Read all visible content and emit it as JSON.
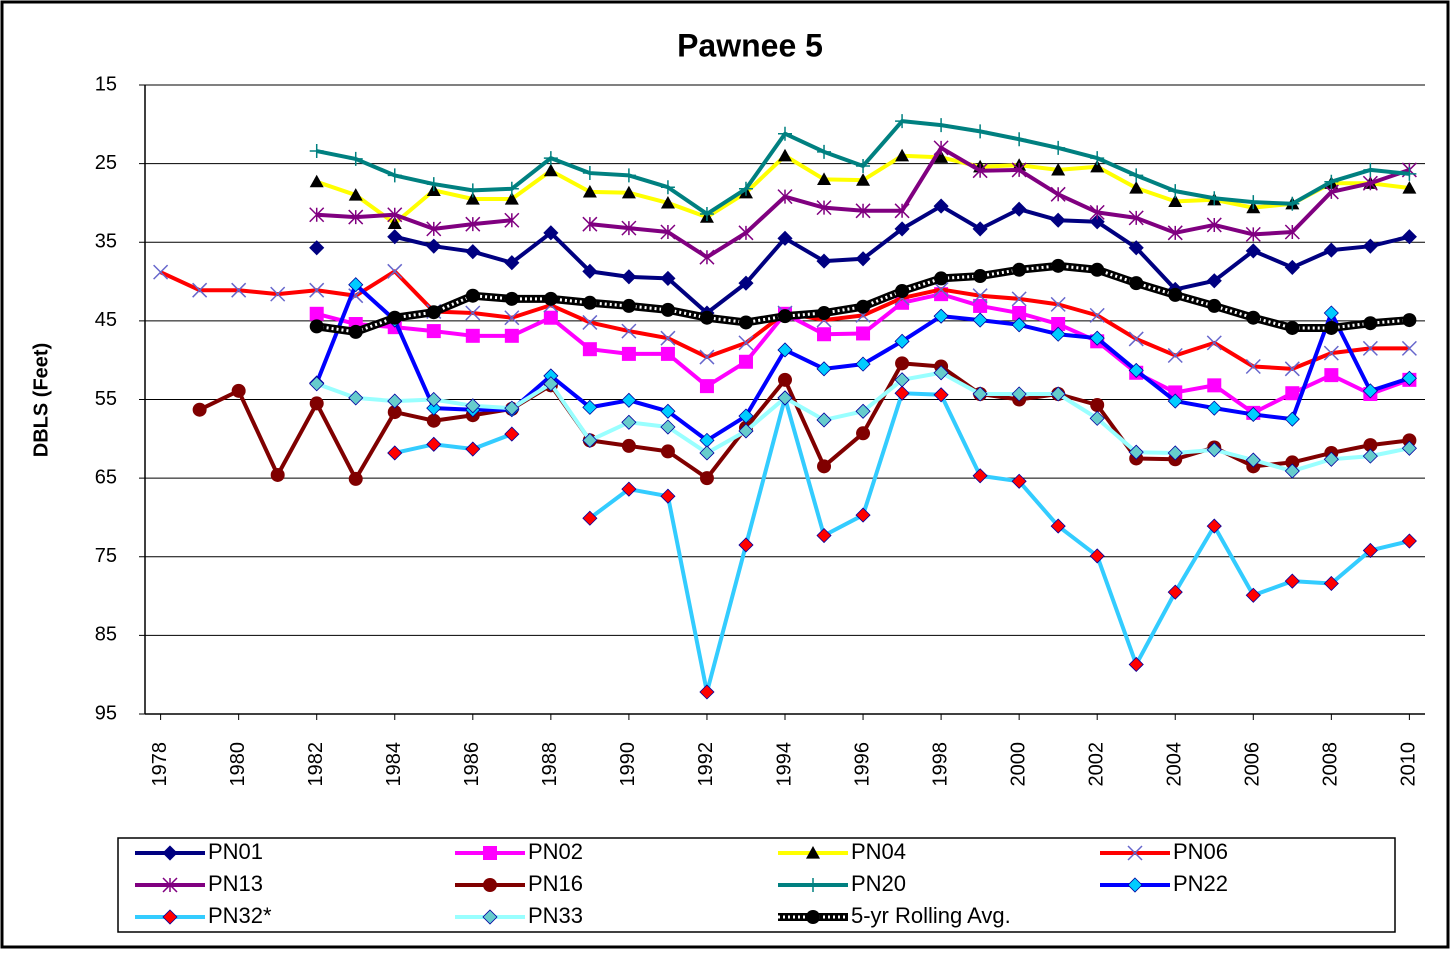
{
  "chart_data": {
    "type": "line",
    "title": "Pawnee 5",
    "y_label": "DBLS (Feet)",
    "x": [
      1978,
      1979,
      1980,
      1981,
      1982,
      1983,
      1984,
      1985,
      1986,
      1987,
      1988,
      1989,
      1990,
      1991,
      1992,
      1993,
      1994,
      1995,
      1996,
      1997,
      1998,
      1999,
      2000,
      2001,
      2002,
      2003,
      2004,
      2005,
      2006,
      2007,
      2008,
      2009,
      2010
    ],
    "xlim": [
      1977.6,
      2010.4
    ],
    "xticks": [
      1978,
      1980,
      1982,
      1984,
      1986,
      1988,
      1990,
      1992,
      1994,
      1996,
      1998,
      2000,
      2002,
      2004,
      2006,
      2008,
      2010
    ],
    "ylim": [
      15,
      95
    ],
    "y_inverted": true,
    "yticks": [
      15,
      25,
      35,
      45,
      55,
      65,
      75,
      85,
      95
    ],
    "grid": true,
    "legend": "bottom",
    "series": [
      {
        "name": "PN01",
        "color": "#000080",
        "marker": "diamond",
        "marker_color": "#000080",
        "values": [
          null,
          null,
          null,
          null,
          35.7,
          null,
          34.3,
          35.5,
          36.2,
          37.6,
          33.8,
          38.7,
          39.4,
          39.6,
          44,
          40.2,
          34.5,
          37.4,
          37.1,
          33.3,
          30.4,
          33.3,
          30.8,
          32.2,
          32.4,
          35.7,
          41,
          39.9,
          36.1,
          38.2,
          36,
          35.5,
          34.3
        ]
      },
      {
        "name": "PN02",
        "color": "#ff00ff",
        "marker": "square",
        "marker_color": "#ff00ff",
        "values": [
          null,
          null,
          null,
          null,
          44.1,
          45.4,
          45.8,
          46.3,
          46.9,
          46.9,
          44.6,
          48.6,
          49.2,
          49.2,
          53.3,
          50.2,
          44.1,
          46.7,
          46.6,
          42.7,
          41.6,
          43.1,
          44,
          45.4,
          47.6,
          51.6,
          54.1,
          53.2,
          56.7,
          54.2,
          51.9,
          54.3,
          52.5
        ]
      },
      {
        "name": "PN04",
        "color": "#ffff00",
        "marker": "triangle",
        "marker_color": "#000000",
        "values": [
          null,
          null,
          null,
          null,
          27.3,
          29,
          32.6,
          28.4,
          29.5,
          29.5,
          25.9,
          28.6,
          28.7,
          30,
          31.8,
          28.7,
          24,
          27,
          27.1,
          24,
          24.2,
          25.4,
          25.2,
          25.8,
          25.4,
          28.1,
          29.8,
          29.6,
          30.6,
          30.1,
          27.5,
          27.5,
          28.1
        ]
      },
      {
        "name": "PN06",
        "color": "#ff0000",
        "marker": "x",
        "marker_color": "#6666cc",
        "values": [
          38.8,
          41.1,
          41.1,
          41.6,
          41.1,
          41.8,
          38.7,
          43.8,
          44,
          44.6,
          43,
          45.2,
          46.3,
          47.2,
          49.6,
          47.8,
          44,
          44.9,
          44.3,
          42.1,
          41,
          41.8,
          42.2,
          42.9,
          44.3,
          47.3,
          49.4,
          47.8,
          50.8,
          51.1,
          49.1,
          48.5,
          48.5
        ]
      },
      {
        "name": "PN13",
        "color": "#800080",
        "marker": "star",
        "marker_color": "#800080",
        "values": [
          null,
          null,
          null,
          null,
          31.5,
          31.8,
          31.5,
          33.3,
          32.7,
          32.2,
          null,
          32.7,
          33.2,
          33.7,
          36.9,
          33.8,
          29.2,
          30.6,
          31,
          31,
          23,
          25.9,
          25.8,
          28.9,
          31.2,
          31.9,
          33.8,
          32.8,
          34,
          33.7,
          28.6,
          27.5,
          25.8
        ]
      },
      {
        "name": "PN16",
        "color": "#800000",
        "marker": "circle",
        "marker_color": "#800000",
        "values": [
          null,
          56.3,
          53.9,
          64.6,
          55.5,
          65.1,
          56.6,
          57.7,
          57,
          56.2,
          53.2,
          60.2,
          60.9,
          61.6,
          65,
          58.6,
          52.5,
          63.5,
          59.3,
          50.4,
          50.8,
          54.3,
          55,
          54.3,
          55.7,
          62.5,
          62.6,
          61.1,
          63.5,
          63,
          61.8,
          60.8,
          60.2
        ]
      },
      {
        "name": "PN20",
        "color": "#008080",
        "marker": "plus",
        "marker_color": "#008080",
        "values": [
          null,
          null,
          null,
          null,
          23.4,
          24.4,
          26.5,
          27.6,
          28.4,
          28.2,
          24.3,
          26.2,
          26.5,
          28,
          31.4,
          28.2,
          21.2,
          23.5,
          25.3,
          19.6,
          20.1,
          20.9,
          21.9,
          23,
          24.3,
          26.5,
          28.5,
          29.4,
          29.9,
          30.1,
          27.3,
          25.8,
          26.3
        ]
      },
      {
        "name": "PN22",
        "color": "#0000ff",
        "marker": "diamond",
        "marker_color": "#00ccff",
        "values": [
          null,
          null,
          null,
          null,
          52.9,
          40.4,
          44.9,
          56.1,
          56.3,
          56.3,
          52,
          56,
          55.1,
          56.5,
          60.2,
          57.1,
          48.7,
          51.1,
          50.5,
          47.6,
          44.4,
          44.9,
          45.5,
          46.7,
          47.2,
          51.3,
          55.2,
          56.1,
          56.9,
          57.5,
          44,
          53.9,
          52.3
        ]
      },
      {
        "name": "PN32*",
        "color": "#33ccff",
        "marker": "diamond",
        "marker_color": "#ff0000",
        "values": [
          null,
          null,
          null,
          null,
          null,
          null,
          61.8,
          60.7,
          61.3,
          59.4,
          null,
          70.1,
          66.4,
          67.3,
          92.2,
          73.5,
          54.8,
          72.3,
          69.7,
          54.2,
          54.4,
          64.7,
          65.4,
          71.1,
          74.9,
          88.7,
          79.5,
          71.1,
          79.9,
          78.1,
          78.4,
          74.2,
          73
        ]
      },
      {
        "name": "PN33",
        "color": "#99ffff",
        "marker": "diamond",
        "marker_color": "#66cccc",
        "values": [
          null,
          null,
          null,
          null,
          53,
          54.8,
          55.2,
          55,
          55.8,
          56.1,
          53,
          60.2,
          57.9,
          58.5,
          61.8,
          59,
          54.8,
          57.6,
          56.5,
          52.5,
          51.6,
          54.3,
          54.3,
          54.3,
          57.4,
          61.7,
          61.8,
          61.4,
          62.7,
          64.1,
          62.6,
          62.2,
          61.2
        ]
      },
      {
        "name": "5-yr Rolling Avg.",
        "color": "#000000",
        "marker": "circle",
        "marker_color": "#000000",
        "line_style": "hatched",
        "values": [
          null,
          null,
          null,
          null,
          45.7,
          46.4,
          44.6,
          43.9,
          41.8,
          42.2,
          42.2,
          42.7,
          43.1,
          43.6,
          44.6,
          45.2,
          44.4,
          44,
          43.2,
          41.2,
          39.6,
          39.3,
          38.5,
          38,
          38.5,
          40.2,
          41.7,
          43.1,
          44.6,
          45.9,
          45.9,
          45.3,
          44.9
        ]
      }
    ]
  }
}
